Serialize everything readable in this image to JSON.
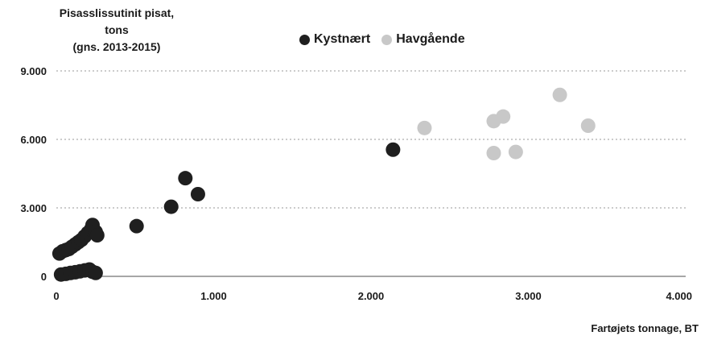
{
  "chart_data": {
    "type": "scatter",
    "ylabel_lines": [
      "Pisasslissutinit pisat,",
      "tons",
      "(gns. 2013-2015)"
    ],
    "xlabel": "Fartøjets tonnage, BT",
    "xlim": [
      0,
      4000
    ],
    "ylim": [
      0,
      9000
    ],
    "xticks": [
      0,
      1000,
      2000,
      3000,
      4000
    ],
    "xtick_labels": [
      "0",
      "1.000",
      "2.000",
      "3.000",
      "4.000"
    ],
    "yticks": [
      0,
      3000,
      6000,
      9000
    ],
    "ytick_labels": [
      "0",
      "3.000",
      "6.000",
      "9.000"
    ],
    "grid": "horizontal dotted",
    "legend_position": "top-center",
    "series": [
      {
        "name": "Kystnært",
        "color": "#1f1f1f",
        "points": [
          [
            30,
            80
          ],
          [
            60,
            110
          ],
          [
            90,
            150
          ],
          [
            120,
            180
          ],
          [
            150,
            220
          ],
          [
            180,
            260
          ],
          [
            210,
            300
          ],
          [
            230,
            200
          ],
          [
            250,
            150
          ],
          [
            20,
            1000
          ],
          [
            40,
            1100
          ],
          [
            60,
            1150
          ],
          [
            80,
            1200
          ],
          [
            100,
            1300
          ],
          [
            120,
            1400
          ],
          [
            140,
            1500
          ],
          [
            160,
            1600
          ],
          [
            180,
            1750
          ],
          [
            200,
            1900
          ],
          [
            220,
            2050
          ],
          [
            230,
            2250
          ],
          [
            250,
            1950
          ],
          [
            260,
            1800
          ],
          [
            510,
            2200
          ],
          [
            730,
            3050
          ],
          [
            820,
            4300
          ],
          [
            900,
            3600
          ],
          [
            2140,
            5550
          ]
        ]
      },
      {
        "name": "Havgående",
        "color": "#c8c8c8",
        "points": [
          [
            2340,
            6500
          ],
          [
            2780,
            6800
          ],
          [
            2840,
            7000
          ],
          [
            2780,
            5400
          ],
          [
            2920,
            5450
          ],
          [
            3200,
            7950
          ],
          [
            3380,
            6600
          ]
        ]
      }
    ]
  }
}
